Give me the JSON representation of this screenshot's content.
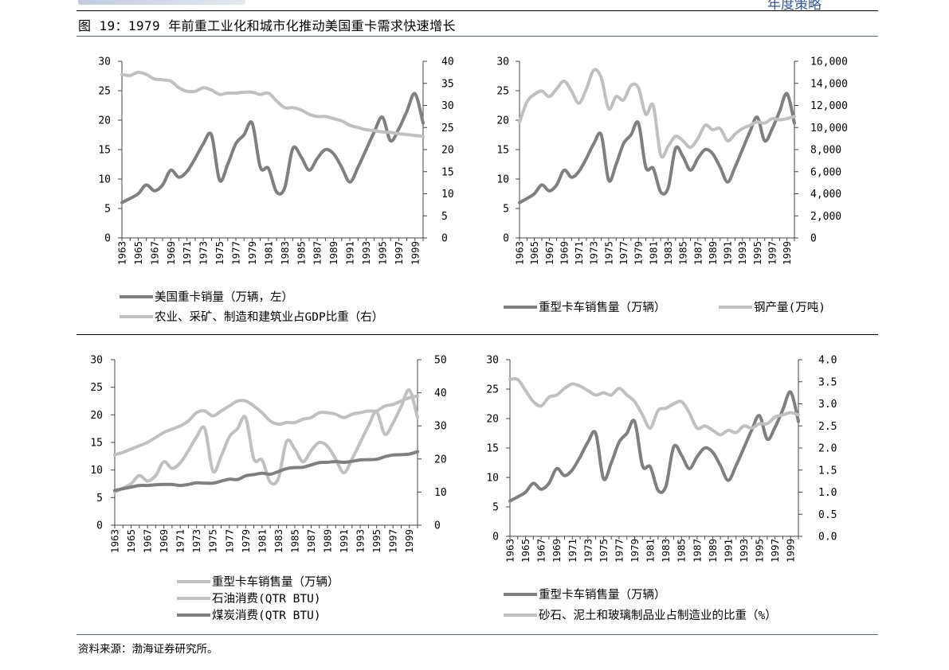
{
  "header": {
    "right_text": "年度策略"
  },
  "figure_title": "图 19：1979 年前重工业化和城市化推动美国重卡需求快速增长",
  "source": "资料来源：渤海证券研究所。",
  "colors": {
    "dark": "#7f7f7f",
    "light": "#c0c0c0",
    "rule_blue": "#4a6aa5"
  },
  "chart_data": [
    {
      "type": "line",
      "x": [
        1963,
        1964,
        1965,
        1966,
        1967,
        1968,
        1969,
        1970,
        1971,
        1972,
        1973,
        1974,
        1975,
        1976,
        1977,
        1978,
        1979,
        1980,
        1981,
        1982,
        1983,
        1984,
        1985,
        1986,
        1987,
        1988,
        1989,
        1990,
        1991,
        1992,
        1993,
        1994,
        1995,
        1996,
        1997,
        1998,
        1999,
        2000
      ],
      "x_ticks": [
        "1963",
        "1965",
        "1967",
        "1969",
        "1971",
        "1973",
        "1975",
        "1977",
        "1979",
        "1981",
        "1983",
        "1985",
        "1987",
        "1989",
        "1991",
        "1993",
        "1995",
        "1997",
        "1999"
      ],
      "ylim_left": [
        0,
        30
      ],
      "ylim_right": [
        0,
        40
      ],
      "y_ticks_left": [
        "0",
        "5",
        "10",
        "15",
        "20",
        "25",
        "30"
      ],
      "y_ticks_right": [
        "0",
        "5",
        "10",
        "15",
        "20",
        "25",
        "30",
        "35",
        "40"
      ],
      "grid": false,
      "legend_position": "bottom",
      "series": [
        {
          "name": "美国重卡销量（万辆，左）",
          "axis": "left",
          "color": "dark",
          "values": [
            6.0,
            6.7,
            7.5,
            9.0,
            8.0,
            9.0,
            11.5,
            10.3,
            11.3,
            13.5,
            16.0,
            17.5,
            9.8,
            12.5,
            16.0,
            17.5,
            19.5,
            12.0,
            11.8,
            7.8,
            8.5,
            15.2,
            13.8,
            11.5,
            13.5,
            15.0,
            14.3,
            12.0,
            9.5,
            12.0,
            15.0,
            18.0,
            20.5,
            16.5,
            18.5,
            21.5,
            24.5,
            19.5
          ]
        },
        {
          "name": "农业、采矿、制造和建筑业占GDP比重（右）",
          "axis": "right",
          "color": "light",
          "values": [
            37,
            36.8,
            37.5,
            37,
            36,
            35.8,
            35.5,
            34,
            33.2,
            33.2,
            34,
            33.5,
            32.5,
            32.8,
            32.8,
            33,
            33,
            32.5,
            32.8,
            31,
            29.5,
            29.5,
            29,
            28,
            27.5,
            27.5,
            27,
            26.5,
            25.5,
            25,
            24.5,
            24.3,
            24,
            23.9,
            23.6,
            23.4,
            23.2,
            23
          ]
        }
      ]
    },
    {
      "type": "line",
      "x": [
        1963,
        1964,
        1965,
        1966,
        1967,
        1968,
        1969,
        1970,
        1971,
        1972,
        1973,
        1974,
        1975,
        1976,
        1977,
        1978,
        1979,
        1980,
        1981,
        1982,
        1983,
        1984,
        1985,
        1986,
        1987,
        1988,
        1989,
        1990,
        1991,
        1992,
        1993,
        1994,
        1995,
        1996,
        1997,
        1998,
        1999,
        2000
      ],
      "x_ticks": [
        "1963",
        "1965",
        "1967",
        "1969",
        "1971",
        "1973",
        "1975",
        "1977",
        "1979",
        "1981",
        "1983",
        "1985",
        "1987",
        "1989",
        "1991",
        "1993",
        "1995",
        "1997",
        "1999"
      ],
      "ylim_left": [
        0,
        30
      ],
      "ylim_right": [
        0,
        16000
      ],
      "y_ticks_left": [
        "0",
        "5",
        "10",
        "15",
        "20",
        "25",
        "30"
      ],
      "y_ticks_right": [
        "0",
        "2,000",
        "4,000",
        "6,000",
        "8,000",
        "10,000",
        "12,000",
        "14,000",
        "16,000"
      ],
      "grid": false,
      "legend_position": "bottom",
      "series": [
        {
          "name": "重型卡车销售量（万辆）",
          "axis": "left",
          "color": "dark",
          "values": [
            6.0,
            6.7,
            7.5,
            9.0,
            8.0,
            9.0,
            11.5,
            10.3,
            11.3,
            13.5,
            16.0,
            17.5,
            9.8,
            12.5,
            16.0,
            17.5,
            19.5,
            12.0,
            11.8,
            7.8,
            8.5,
            15.2,
            13.8,
            11.5,
            13.5,
            15.0,
            14.3,
            12.0,
            9.5,
            12.0,
            15.0,
            18.0,
            20.5,
            16.5,
            18.5,
            21.5,
            24.5,
            19.5
          ]
        },
        {
          "name": "钢产量(万吨)",
          "axis": "right",
          "color": "light",
          "values": [
            10500,
            12300,
            13000,
            13300,
            12800,
            13500,
            14200,
            13300,
            12200,
            13500,
            15200,
            14500,
            11700,
            12800,
            12500,
            13800,
            13600,
            11200,
            12000,
            7500,
            8300,
            9200,
            8800,
            8200,
            9000,
            10200,
            9800,
            9900,
            8800,
            9400,
            9900,
            10200,
            10500,
            10400,
            10800,
            10700,
            10800,
            11000
          ]
        }
      ]
    },
    {
      "type": "line",
      "x": [
        1963,
        1964,
        1965,
        1966,
        1967,
        1968,
        1969,
        1970,
        1971,
        1972,
        1973,
        1974,
        1975,
        1976,
        1977,
        1978,
        1979,
        1980,
        1981,
        1982,
        1983,
        1984,
        1985,
        1986,
        1987,
        1988,
        1989,
        1990,
        1991,
        1992,
        1993,
        1994,
        1995,
        1996,
        1997,
        1998,
        1999,
        2000
      ],
      "x_ticks": [
        "1963",
        "1965",
        "1967",
        "1969",
        "1971",
        "1973",
        "1975",
        "1977",
        "1979",
        "1981",
        "1983",
        "1985",
        "1987",
        "1989",
        "1991",
        "1993",
        "1995",
        "1997",
        "1999"
      ],
      "ylim_left": [
        0,
        30
      ],
      "ylim_right": [
        0,
        50
      ],
      "y_ticks_left": [
        "0",
        "5",
        "10",
        "15",
        "20",
        "25",
        "30"
      ],
      "y_ticks_right": [
        "0",
        "10",
        "20",
        "30",
        "40",
        "50"
      ],
      "grid": false,
      "legend_position": "bottom",
      "series": [
        {
          "name": "重型卡车销售量（万辆）",
          "axis": "left",
          "color": "light",
          "values": [
            6.0,
            6.7,
            7.5,
            9.0,
            8.0,
            9.0,
            11.5,
            10.3,
            11.3,
            13.5,
            16.0,
            17.5,
            9.8,
            12.5,
            16.0,
            17.5,
            19.5,
            12.0,
            11.8,
            7.8,
            8.5,
            15.2,
            13.8,
            11.5,
            13.5,
            15.0,
            14.3,
            12.0,
            9.5,
            12.0,
            15.0,
            18.0,
            20.5,
            16.5,
            18.5,
            21.5,
            24.5,
            19.5
          ]
        },
        {
          "name": "石油消费(QTR BTU)",
          "axis": "right",
          "color": "light",
          "values": [
            21.3,
            22,
            23,
            24,
            25,
            26.5,
            28,
            29,
            30,
            31.5,
            34,
            34.5,
            33,
            34.5,
            36,
            37.5,
            37.5,
            36,
            34,
            31.5,
            30.5,
            31,
            31,
            32,
            32.5,
            34,
            34,
            33.5,
            32.5,
            33.5,
            34,
            34.5,
            34.5,
            36,
            36.5,
            37.5,
            38.5,
            39
          ]
        },
        {
          "name": "煤炭消费(QTR BTU)",
          "axis": "right",
          "color": "dark",
          "values": [
            10.5,
            11,
            11.5,
            12,
            12,
            12.2,
            12.3,
            12.3,
            12,
            12.3,
            12.8,
            12.7,
            12.7,
            13.3,
            13.9,
            13.8,
            14.9,
            15.3,
            15.7,
            15.4,
            16.2,
            17.1,
            17.4,
            17.5,
            18.2,
            18.9,
            19,
            19.2,
            19,
            19.3,
            19.7,
            19.8,
            19.9,
            20.7,
            21.2,
            21.3,
            21.5,
            22.2
          ]
        }
      ]
    },
    {
      "type": "line",
      "x": [
        1963,
        1964,
        1965,
        1966,
        1967,
        1968,
        1969,
        1970,
        1971,
        1972,
        1973,
        1974,
        1975,
        1976,
        1977,
        1978,
        1979,
        1980,
        1981,
        1982,
        1983,
        1984,
        1985,
        1986,
        1987,
        1988,
        1989,
        1990,
        1991,
        1992,
        1993,
        1994,
        1995,
        1996,
        1997,
        1998,
        1999,
        2000
      ],
      "x_ticks": [
        "1963",
        "1965",
        "1967",
        "1969",
        "1971",
        "1973",
        "1975",
        "1977",
        "1979",
        "1981",
        "1983",
        "1985",
        "1987",
        "1989",
        "1991",
        "1993",
        "1995",
        "1997",
        "1999"
      ],
      "ylim_left": [
        0,
        30
      ],
      "ylim_right": [
        0,
        4
      ],
      "y_ticks_left": [
        "0",
        "5",
        "10",
        "15",
        "20",
        "25",
        "30"
      ],
      "y_ticks_right": [
        "0.0",
        "0.5",
        "1.0",
        "1.5",
        "2.0",
        "2.5",
        "3.0",
        "3.5",
        "4.0"
      ],
      "grid": false,
      "legend_position": "bottom",
      "series": [
        {
          "name": "重型卡车销售量（万辆）",
          "axis": "left",
          "color": "dark",
          "values": [
            6.0,
            6.7,
            7.5,
            9.0,
            8.0,
            9.0,
            11.5,
            10.3,
            11.3,
            13.5,
            16.0,
            17.5,
            9.8,
            12.5,
            16.0,
            17.5,
            19.5,
            12.0,
            11.8,
            7.8,
            8.5,
            15.2,
            13.8,
            11.5,
            13.5,
            15.0,
            14.3,
            12.0,
            9.5,
            12.0,
            15.0,
            18.0,
            20.5,
            16.5,
            18.5,
            21.5,
            24.5,
            19.5
          ]
        },
        {
          "name": "砂石、泥土和玻璃制品业占制造业的比重（%）",
          "axis": "right",
          "color": "light",
          "values": [
            3.55,
            3.55,
            3.3,
            3.05,
            2.95,
            3.15,
            3.2,
            3.35,
            3.45,
            3.4,
            3.3,
            3.2,
            3.25,
            3.2,
            3.35,
            3.2,
            3.05,
            2.75,
            2.45,
            2.85,
            2.9,
            3.0,
            3.05,
            2.8,
            2.45,
            2.5,
            2.4,
            2.3,
            2.4,
            2.35,
            2.5,
            2.45,
            2.55,
            2.55,
            2.7,
            2.75,
            2.8,
            2.75
          ]
        }
      ]
    }
  ]
}
